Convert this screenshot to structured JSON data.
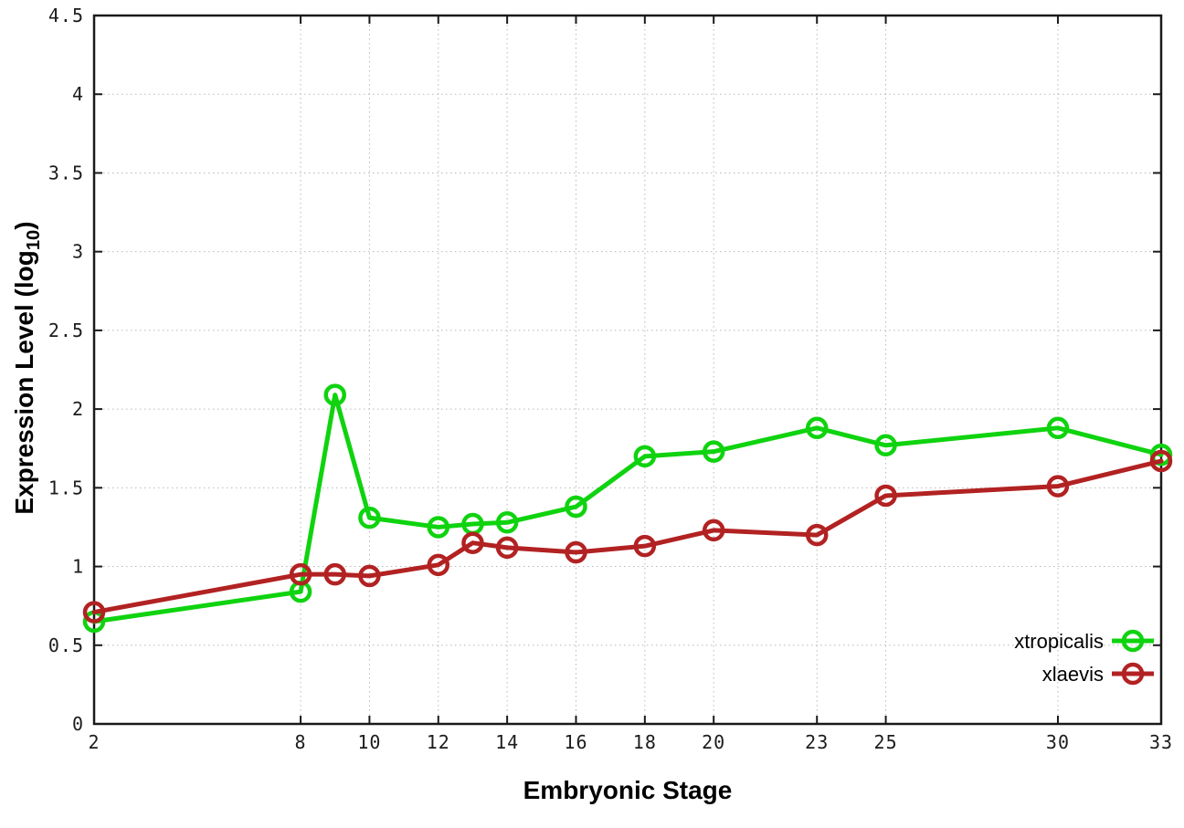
{
  "labels": {
    "ylabel_prefix": "Expression Level (log",
    "ylabel_sub": "10",
    "ylabel_suffix": ")"
  },
  "chart_data": {
    "type": "line",
    "title": "",
    "xlabel": "Embryonic Stage",
    "ylabel": "Expression Level (log10)",
    "xlim": [
      2,
      33
    ],
    "ylim": [
      0,
      4.5
    ],
    "grid": "dotted",
    "legend_position": "bottom-right-inside",
    "x": [
      2,
      8,
      9,
      10,
      12,
      13,
      14,
      16,
      18,
      20,
      23,
      25,
      30,
      33
    ],
    "series": [
      {
        "name": "xtropicalis",
        "color": "#0fd30f",
        "values": [
          0.65,
          0.84,
          2.09,
          1.31,
          1.25,
          1.27,
          1.28,
          1.38,
          1.7,
          1.73,
          1.88,
          1.77,
          1.88,
          1.71
        ]
      },
      {
        "name": "xlaevis",
        "color": "#b22222",
        "values": [
          0.71,
          0.95,
          0.95,
          0.94,
          1.01,
          1.15,
          1.12,
          1.09,
          1.13,
          1.23,
          1.2,
          1.45,
          1.51,
          1.67
        ]
      }
    ],
    "xticks": {
      "values": [
        2,
        8,
        10,
        12,
        14,
        16,
        18,
        20,
        23,
        25,
        30,
        33
      ],
      "labels": [
        "2",
        "8",
        "10",
        "12",
        "14",
        "16",
        "18",
        "20",
        "23",
        "25",
        "30",
        "33"
      ]
    },
    "yticks": {
      "values": [
        0,
        0.5,
        1,
        1.5,
        2,
        2.5,
        3,
        3.5,
        4,
        4.5
      ],
      "labels": [
        "0",
        "0.5",
        "1",
        "1.5",
        "2",
        "2.5",
        "3",
        "3.5",
        "4",
        "4.5"
      ]
    }
  }
}
